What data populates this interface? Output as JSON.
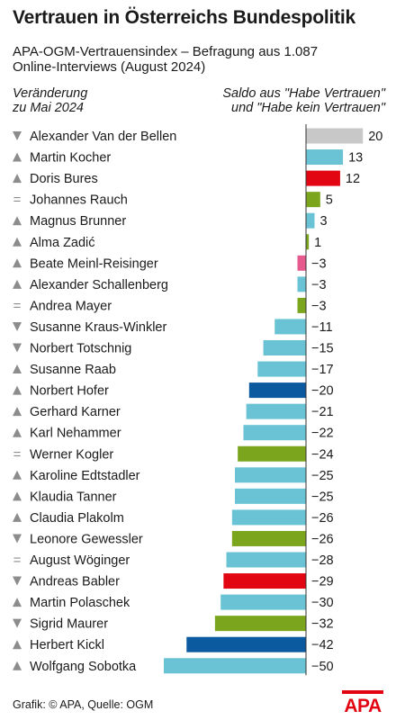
{
  "title": "Vertrauen in Österreichs Bundespolitik",
  "subtitle_line1": "APA-OGM-Vertrauensindex – Befragung aus 1.087",
  "subtitle_line2": "Online-Interviews (August 2024)",
  "header_left_line1": "Veränderung",
  "header_left_line2": "zu Mai 2024",
  "header_right_line1": "Saldo aus \"Habe Vertrauen\"",
  "header_right_line2": "und \"Habe kein Vertrauen\"",
  "source": "Grafik: © APA, Quelle: OGM",
  "logo_text": "APA",
  "colors": {
    "logo_red": "#e10612",
    "arrow_gray": "#8c8c8c",
    "zero_line": "#333333"
  },
  "chart_data": {
    "type": "bar",
    "orientation": "horizontal",
    "categories": [
      "Alexander Van der Bellen",
      "Martin Kocher",
      "Doris Bures",
      "Johannes Rauch",
      "Magnus Brunner",
      "Alma Zadić",
      "Beate Meinl-Reisinger",
      "Alexander Schallenberg",
      "Andrea Mayer",
      "Susanne Kraus-Winkler",
      "Norbert Totschnig",
      "Susanne Raab",
      "Norbert Hofer",
      "Gerhard Karner",
      "Karl Nehammer",
      "Werner Kogler",
      "Karoline Edtstadler",
      "Klaudia Tanner",
      "Claudia Plakolm",
      "Leonore Gewessler",
      "August Wöginger",
      "Andreas Babler",
      "Martin Polaschek",
      "Sigrid Maurer",
      "Herbert Kickl",
      "Wolfgang Sobotka"
    ],
    "values": [
      20,
      13,
      12,
      5,
      3,
      1,
      -3,
      -3,
      -3,
      -11,
      -15,
      -17,
      -20,
      -21,
      -22,
      -24,
      -25,
      -25,
      -26,
      -26,
      -28,
      -29,
      -30,
      -32,
      -42,
      -50
    ],
    "value_labels": [
      "20",
      "13",
      "12",
      "5",
      "3",
      "1",
      "−3",
      "−3",
      "−3",
      "−11",
      "−15",
      "−17",
      "−20",
      "−21",
      "−22",
      "−24",
      "−25",
      "−25",
      "−26",
      "−26",
      "−28",
      "−29",
      "−30",
      "−32",
      "−42",
      "−50"
    ],
    "change": [
      "down",
      "up",
      "up",
      "same",
      "up",
      "up",
      "up",
      "up",
      "same",
      "down",
      "down",
      "up",
      "up",
      "up",
      "up",
      "same",
      "up",
      "up",
      "up",
      "down",
      "same",
      "down",
      "up",
      "down",
      "up",
      "up"
    ],
    "bar_colors": [
      "#c8c8c8",
      "#69c3d4",
      "#e10612",
      "#7aa51d",
      "#69c3d4",
      "#7aa51d",
      "#e75a8d",
      "#69c3d4",
      "#7aa51d",
      "#69c3d4",
      "#69c3d4",
      "#69c3d4",
      "#0b5aa0",
      "#69c3d4",
      "#69c3d4",
      "#7aa51d",
      "#69c3d4",
      "#69c3d4",
      "#69c3d4",
      "#7aa51d",
      "#69c3d4",
      "#e10612",
      "#69c3d4",
      "#7aa51d",
      "#0b5aa0",
      "#69c3d4"
    ],
    "xlim": [
      -50,
      20
    ],
    "grid": false,
    "legend": "none"
  }
}
